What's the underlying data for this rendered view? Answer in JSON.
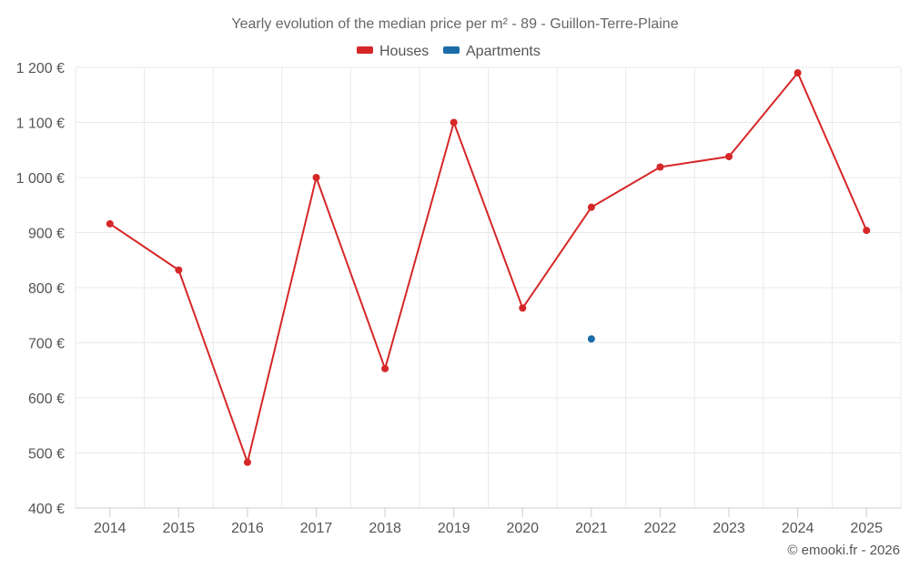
{
  "chart_data": {
    "type": "line",
    "title": "Yearly evolution of the median price per m² - 89 - Guillon-Terre-Plaine",
    "categories": [
      "2014",
      "2015",
      "2016",
      "2017",
      "2018",
      "2019",
      "2020",
      "2021",
      "2022",
      "2023",
      "2024",
      "2025"
    ],
    "y_ticks": [
      400,
      500,
      600,
      700,
      800,
      900,
      1000,
      1100,
      1200
    ],
    "y_tick_labels": [
      "400 €",
      "500 €",
      "600 €",
      "700 €",
      "800 €",
      "900 €",
      "1 000 €",
      "1 100 €",
      "1 200 €"
    ],
    "ylim": [
      400,
      1200
    ],
    "grid": true,
    "legend_position": "top-center",
    "series": [
      {
        "name": "Houses",
        "color": "#d62728",
        "values": [
          916,
          832,
          483,
          1000,
          653,
          1100,
          763,
          946,
          1019,
          1038,
          1190,
          904
        ]
      },
      {
        "name": "Apartments",
        "color": "#1b6ca8",
        "values": [
          null,
          null,
          null,
          null,
          null,
          null,
          null,
          707,
          null,
          null,
          null,
          null
        ]
      }
    ]
  },
  "credit": "© emooki.fr - 2026"
}
